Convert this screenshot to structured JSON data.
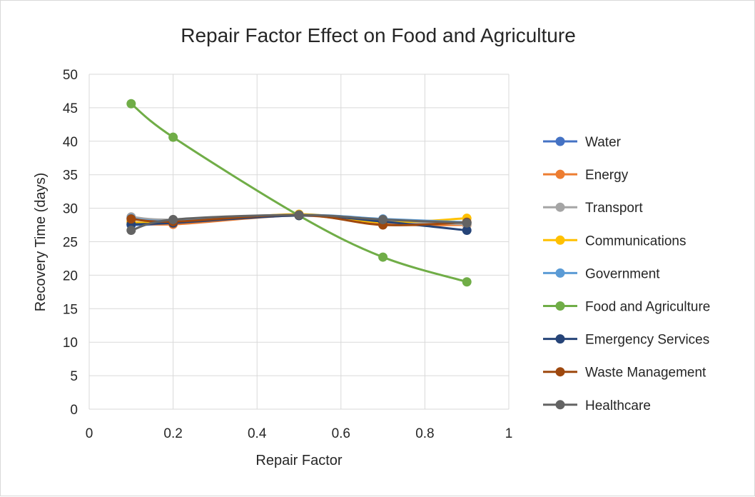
{
  "chart_data": {
    "type": "scatter",
    "title": "Repair Factor Effect on Food and Agriculture",
    "xlabel": "Repair Factor",
    "ylabel": "Recovery Time (days)",
    "xlim": [
      0,
      1
    ],
    "ylim": [
      0,
      50
    ],
    "xticks": [
      "0",
      "0.2",
      "0.4",
      "0.6",
      "0.8",
      "1"
    ],
    "yticks": [
      "0",
      "5",
      "10",
      "15",
      "20",
      "25",
      "30",
      "35",
      "40",
      "45",
      "50"
    ],
    "grid": true,
    "legend_position": "right",
    "x": [
      0.1,
      0.2,
      0.5,
      0.7,
      0.9
    ],
    "series": [
      {
        "name": "Water",
        "color": "#4472c4",
        "values": [
          27.5,
          27.7,
          29.0,
          27.9,
          27.8
        ]
      },
      {
        "name": "Energy",
        "color": "#ed7d31",
        "values": [
          28.0,
          27.6,
          28.9,
          27.6,
          27.5
        ]
      },
      {
        "name": "Transport",
        "color": "#a5a5a5",
        "values": [
          28.7,
          28.3,
          29.0,
          28.1,
          27.6
        ]
      },
      {
        "name": "Communications",
        "color": "#ffc000",
        "values": [
          27.9,
          27.9,
          29.1,
          27.9,
          28.5
        ]
      },
      {
        "name": "Government",
        "color": "#5b9bd5",
        "values": [
          28.5,
          28.1,
          29.0,
          28.4,
          27.9
        ]
      },
      {
        "name": "Food and Agriculture",
        "color": "#70ad47",
        "values": [
          45.6,
          40.6,
          28.9,
          22.7,
          19.0
        ]
      },
      {
        "name": "Emergency Services",
        "color": "#264478",
        "values": [
          27.6,
          27.8,
          28.9,
          28.0,
          26.7
        ]
      },
      {
        "name": "Waste Management",
        "color": "#9e480e",
        "values": [
          28.4,
          28.0,
          29.0,
          27.5,
          27.9
        ]
      },
      {
        "name": "Healthcare",
        "color": "#636363",
        "values": [
          26.7,
          28.3,
          29.0,
          28.3,
          27.8
        ]
      }
    ]
  }
}
